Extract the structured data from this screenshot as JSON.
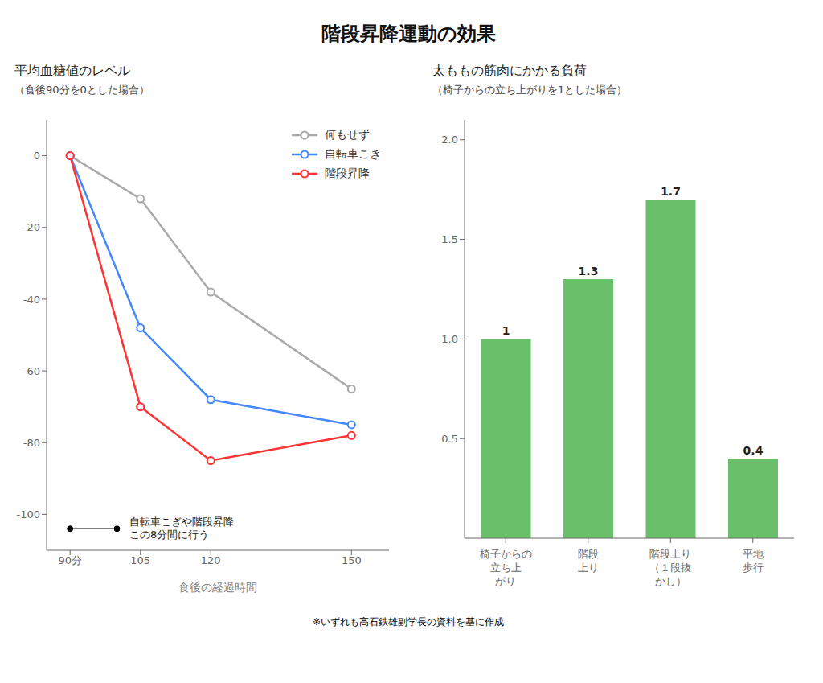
{
  "title": "階段昇降運動の効果",
  "annotations": [
    "※いずれも高石鉄雄副学長の資料を基に作成"
  ],
  "chart_data": [
    {
      "type": "line",
      "title": "平均血糖値のレベル",
      "subtitle": "（食後90分を0とした場合）",
      "x_label": "食後の経過時間",
      "x": [
        90,
        105,
        120,
        150
      ],
      "xlim": [
        85,
        158
      ],
      "xticks": [
        {
          "value": 90,
          "label": "90分"
        },
        105,
        120,
        150
      ],
      "ylim": [
        -110,
        10
      ],
      "yticks": [
        0,
        -20,
        -40,
        -60,
        -80,
        -100
      ],
      "series": [
        {
          "name": "何もせず",
          "color": "#aaaaaa",
          "values": [
            0,
            -12,
            -38,
            -65
          ]
        },
        {
          "name": "自転車こぎ",
          "color": "#4488ff",
          "values": [
            0,
            -48,
            -68,
            -75
          ]
        },
        {
          "name": "階段昇降",
          "color": "#ff3333",
          "values": [
            0,
            -70,
            -85,
            -78
          ]
        }
      ],
      "marker": "o",
      "legend": "upper right",
      "grid": false,
      "annotations": [
        {
          "text": "自転車こぎや階段昇降\nこの8分間に行う",
          "x": 90,
          "x_end": 100,
          "y": -104
        }
      ]
    },
    {
      "type": "bar",
      "title": "太ももの筋肉にかかる負荷",
      "subtitle": "（椅子からの立ち上がりを1とした場合）",
      "categories": [
        "椅子からの\n立ち上\nがり",
        "階段\n上り",
        "階段上り\n（１段抜\nかし）",
        "平地\n歩行"
      ],
      "values": [
        1.0,
        1.3,
        1.7,
        0.4
      ],
      "color": "#6abf6a",
      "ylim": [
        0,
        2.1
      ],
      "yticks": [
        0.5,
        {
          "value": 1,
          "label": "1.0"
        },
        1.5,
        {
          "value": 2,
          "label": "2.0"
        }
      ],
      "data_labels": true,
      "grid": false
    }
  ]
}
